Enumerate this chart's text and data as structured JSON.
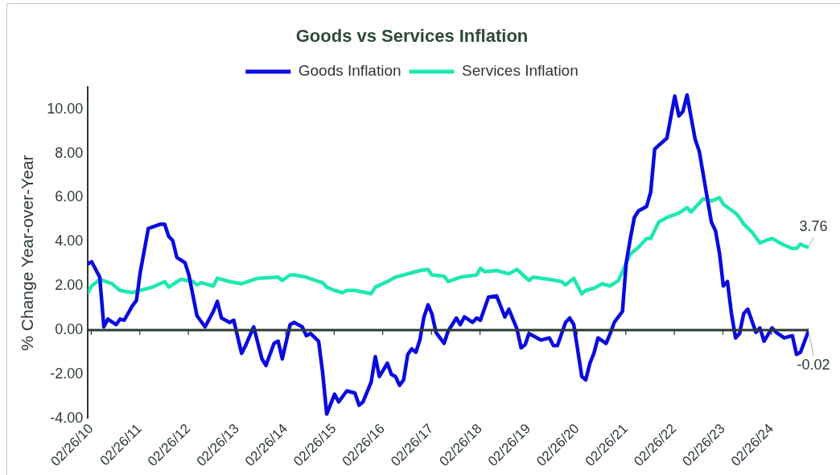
{
  "chart_data": {
    "type": "line",
    "title": "Goods vs Services Inflation",
    "ylabel": "% Change Year-over-Year",
    "legend": "top",
    "marker": "none",
    "line_style": "solid",
    "grid": false,
    "xlim": [
      "2010-02",
      "2024-12"
    ],
    "xticks": [
      {
        "value": "2010-02-26",
        "label": "02/26/10"
      },
      {
        "value": "2011-02-26",
        "label": "02/26/11"
      },
      {
        "value": "2012-02-26",
        "label": "02/26/12"
      },
      {
        "value": "2013-02-26",
        "label": "02/26/13"
      },
      {
        "value": "2014-02-26",
        "label": "02/26/14"
      },
      {
        "value": "2015-02-26",
        "label": "02/26/15"
      },
      {
        "value": "2016-02-26",
        "label": "02/26/16"
      },
      {
        "value": "2017-02-26",
        "label": "02/26/17"
      },
      {
        "value": "2018-02-26",
        "label": "02/26/18"
      },
      {
        "value": "2019-02-26",
        "label": "02/26/19"
      },
      {
        "value": "2020-02-26",
        "label": "02/26/20"
      },
      {
        "value": "2021-02-26",
        "label": "02/26/21"
      },
      {
        "value": "2022-02-26",
        "label": "02/26/22"
      },
      {
        "value": "2023-02-26",
        "label": "02/26/23"
      },
      {
        "value": "2024-02-26",
        "label": "02/26/24"
      }
    ],
    "ylim": [
      -4,
      11
    ],
    "yticks": [
      {
        "value": -4,
        "label": "-4.00"
      },
      {
        "value": -2,
        "label": "-2.00"
      },
      {
        "value": 0,
        "label": "0.00"
      },
      {
        "value": 2,
        "label": "2.00"
      },
      {
        "value": 4,
        "label": "4.00"
      },
      {
        "value": 6,
        "label": "6.00"
      },
      {
        "value": 8,
        "label": "8.00"
      },
      {
        "value": 10,
        "label": "10.00"
      }
    ],
    "series": [
      {
        "name": "Goods Inflation",
        "color": "#0a0ae0",
        "x": [
          "2010-02",
          "2010-03",
          "2010-05",
          "2010-06",
          "2010-07",
          "2010-09",
          "2010-10",
          "2010-11",
          "2011-01",
          "2011-02",
          "2011-03",
          "2011-05",
          "2011-08",
          "2011-09",
          "2011-10",
          "2011-11",
          "2011-12",
          "2012-02",
          "2012-03",
          "2012-05",
          "2012-07",
          "2012-09",
          "2012-10",
          "2012-11",
          "2013-01",
          "2013-02",
          "2013-04",
          "2013-05",
          "2013-07",
          "2013-09",
          "2013-10",
          "2013-12",
          "2014-01",
          "2014-02",
          "2014-04",
          "2014-05",
          "2014-07",
          "2014-08",
          "2014-09",
          "2014-11",
          "2014-12",
          "2015-01",
          "2015-03",
          "2015-04",
          "2015-06",
          "2015-08",
          "2015-09",
          "2015-10",
          "2015-12",
          "2016-01",
          "2016-02",
          "2016-04",
          "2016-05",
          "2016-06",
          "2016-07",
          "2016-08",
          "2016-09",
          "2016-10",
          "2016-11",
          "2016-12",
          "2017-01",
          "2017-02",
          "2017-03",
          "2017-04",
          "2017-06",
          "2017-07",
          "2017-09",
          "2017-10",
          "2017-11",
          "2018-01",
          "2018-02",
          "2018-03",
          "2018-05",
          "2018-07",
          "2018-09",
          "2018-10",
          "2018-12",
          "2019-01",
          "2019-02",
          "2019-03",
          "2019-06",
          "2019-08",
          "2019-09",
          "2019-10",
          "2019-12",
          "2020-01",
          "2020-02",
          "2020-04",
          "2020-05",
          "2020-06",
          "2020-07",
          "2020-08",
          "2020-10",
          "2020-11",
          "2020-12",
          "2021-02",
          "2021-03",
          "2021-04",
          "2021-05",
          "2021-06",
          "2021-08",
          "2021-09",
          "2021-10",
          "2022-01",
          "2022-03",
          "2022-04",
          "2022-05",
          "2022-06",
          "2022-08",
          "2022-09",
          "2022-10",
          "2022-11",
          "2022-12",
          "2023-01",
          "2023-02",
          "2023-03",
          "2023-04",
          "2023-05",
          "2023-06",
          "2023-07",
          "2023-08",
          "2023-09",
          "2023-11",
          "2023-12",
          "2024-01",
          "2024-03",
          "2024-04",
          "2024-06",
          "2024-08",
          "2024-09",
          "2024-10",
          "2024-12"
        ],
        "values": [
          3.0,
          3.1,
          2.4,
          0.15,
          0.5,
          0.25,
          0.5,
          0.45,
          1.1,
          1.35,
          2.6,
          4.6,
          4.8,
          4.8,
          4.25,
          4.05,
          3.3,
          3.05,
          2.5,
          0.65,
          0.15,
          0.85,
          1.3,
          0.55,
          0.35,
          0.45,
          -1.05,
          -0.7,
          0.15,
          -1.3,
          -1.6,
          -0.6,
          -0.5,
          -1.3,
          0.25,
          0.35,
          0.15,
          -0.25,
          -0.15,
          -0.5,
          -1.9,
          -3.8,
          -2.9,
          -3.25,
          -2.75,
          -2.85,
          -3.4,
          -3.25,
          -2.35,
          -1.2,
          -2.1,
          -1.5,
          -2.0,
          -2.1,
          -2.5,
          -2.25,
          -1.1,
          -0.85,
          -1.0,
          -0.45,
          0.6,
          1.15,
          0.75,
          -0.1,
          -0.6,
          -0.05,
          0.55,
          0.25,
          0.6,
          0.35,
          0.55,
          0.45,
          1.5,
          1.55,
          0.6,
          0.95,
          0.05,
          -0.8,
          -0.65,
          -0.15,
          -0.45,
          -0.35,
          -0.7,
          -0.7,
          0.35,
          0.55,
          0.25,
          -2.1,
          -2.25,
          -1.5,
          -1.05,
          -0.35,
          -0.6,
          -0.15,
          0.35,
          0.85,
          3.05,
          4.15,
          5.1,
          5.4,
          5.6,
          6.25,
          8.2,
          8.7,
          10.6,
          9.7,
          9.9,
          10.65,
          8.65,
          8.1,
          7.05,
          5.95,
          4.9,
          4.5,
          3.45,
          2.0,
          2.2,
          0.75,
          -0.35,
          -0.15,
          0.75,
          0.95,
          -0.1,
          0.1,
          -0.5,
          0.1,
          -0.1,
          -0.35,
          -0.25,
          -1.1,
          -1.0,
          -0.02
        ]
      },
      {
        "name": "Services Inflation",
        "color": "#1ee8b2",
        "x": [
          "2010-02",
          "2010-03",
          "2010-05",
          "2010-08",
          "2010-10",
          "2011-01",
          "2011-03",
          "2011-06",
          "2011-09",
          "2011-10",
          "2012-01",
          "2012-04",
          "2012-05",
          "2012-06",
          "2012-09",
          "2012-10",
          "2013-01",
          "2013-04",
          "2013-08",
          "2014-01",
          "2014-02",
          "2014-04",
          "2014-05",
          "2014-08",
          "2014-11",
          "2014-12",
          "2015-01",
          "2015-03",
          "2015-05",
          "2015-06",
          "2015-08",
          "2015-12",
          "2016-01",
          "2016-04",
          "2016-06",
          "2016-09",
          "2016-12",
          "2017-02",
          "2017-03",
          "2017-06",
          "2017-07",
          "2017-10",
          "2018-02",
          "2018-03",
          "2018-04",
          "2018-07",
          "2018-10",
          "2018-12",
          "2019-02",
          "2019-03",
          "2019-04",
          "2019-08",
          "2019-11",
          "2019-12",
          "2020-02",
          "2020-03",
          "2020-04",
          "2020-05",
          "2020-07",
          "2020-09",
          "2020-11",
          "2021-01",
          "2021-02",
          "2021-04",
          "2021-06",
          "2021-08",
          "2021-09",
          "2021-11",
          "2022-01",
          "2022-04",
          "2022-06",
          "2022-07",
          "2022-10",
          "2022-12",
          "2023-02",
          "2023-03",
          "2023-06",
          "2023-07",
          "2023-08",
          "2023-10",
          "2023-12",
          "2024-02",
          "2024-03",
          "2024-06",
          "2024-08",
          "2024-09",
          "2024-10",
          "2024-11",
          "2024-12"
        ],
        "values": [
          1.7,
          2.0,
          2.3,
          2.1,
          1.8,
          1.7,
          1.8,
          1.95,
          2.2,
          1.95,
          2.3,
          2.2,
          2.05,
          2.15,
          2.0,
          2.35,
          2.2,
          2.1,
          2.35,
          2.4,
          2.25,
          2.5,
          2.5,
          2.4,
          2.2,
          2.15,
          1.95,
          1.8,
          1.7,
          1.8,
          1.8,
          1.65,
          1.95,
          2.2,
          2.4,
          2.55,
          2.7,
          2.75,
          2.5,
          2.45,
          2.2,
          2.4,
          2.5,
          2.8,
          2.65,
          2.7,
          2.55,
          2.75,
          2.4,
          2.25,
          2.4,
          2.3,
          2.2,
          2.05,
          2.35,
          2.0,
          1.65,
          1.8,
          1.9,
          2.1,
          2.0,
          2.25,
          2.65,
          3.45,
          3.75,
          4.15,
          4.15,
          4.9,
          5.1,
          5.3,
          5.55,
          5.35,
          5.95,
          5.85,
          6.0,
          5.7,
          5.3,
          5.1,
          4.8,
          4.45,
          3.95,
          4.1,
          4.15,
          3.85,
          3.7,
          3.7,
          3.9,
          3.8,
          3.76
        ]
      }
    ],
    "ref_lines": [
      {
        "axis": "y",
        "value": 0,
        "color": "#2b3a30"
      }
    ],
    "annotations": [
      {
        "text": "3.76",
        "x": "2024-12",
        "y": 3.76
      },
      {
        "text": "-0.02",
        "x": "2024-12",
        "y": -0.02
      }
    ]
  }
}
